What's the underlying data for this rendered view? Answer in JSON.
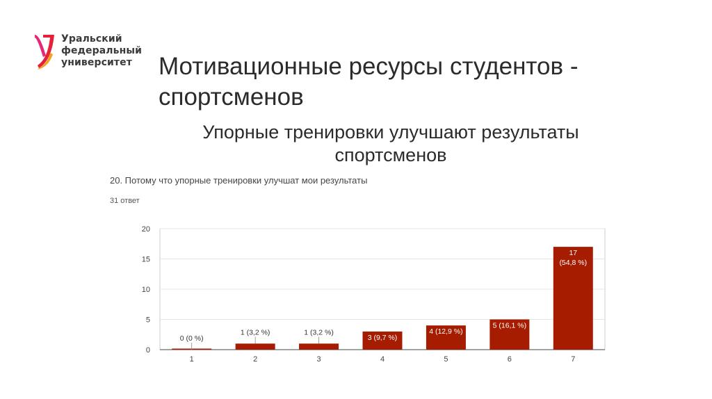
{
  "logo": {
    "lines": [
      "Уральский",
      "федеральный",
      "университет"
    ],
    "icon": "urfu-logo-icon",
    "colors": {
      "red": "#e8213a",
      "orange": "#f7a21b",
      "pink": "#e6287a"
    }
  },
  "slide": {
    "title_line1": "Мотивационные ресурсы студентов -",
    "title_line2": "спортсменов",
    "subtitle_line1": "Упорные тренировки улучшают результаты",
    "subtitle_line2": "спортсменов"
  },
  "question": {
    "text": "20. Потому что упорные тренировки улучшат мои результаты",
    "responses": "31 ответ"
  },
  "chart_data": {
    "type": "bar",
    "categories": [
      "1",
      "2",
      "3",
      "4",
      "5",
      "6",
      "7"
    ],
    "values": [
      0,
      1,
      1,
      3,
      4,
      5,
      17
    ],
    "data_labels": [
      "0 (0 %)",
      "1 (3,2 %)",
      "1 (3,2 %)",
      "3 (9,7 %)",
      "4 (12,9 %)",
      "5 (16,1 %)",
      "17\n(54,8 %)"
    ],
    "ylim": [
      0,
      20
    ],
    "yticks": [
      "0",
      "5",
      "10",
      "15",
      "20"
    ],
    "grid": true,
    "bar_color": "#a61c00",
    "xlabel": "",
    "ylabel": ""
  }
}
